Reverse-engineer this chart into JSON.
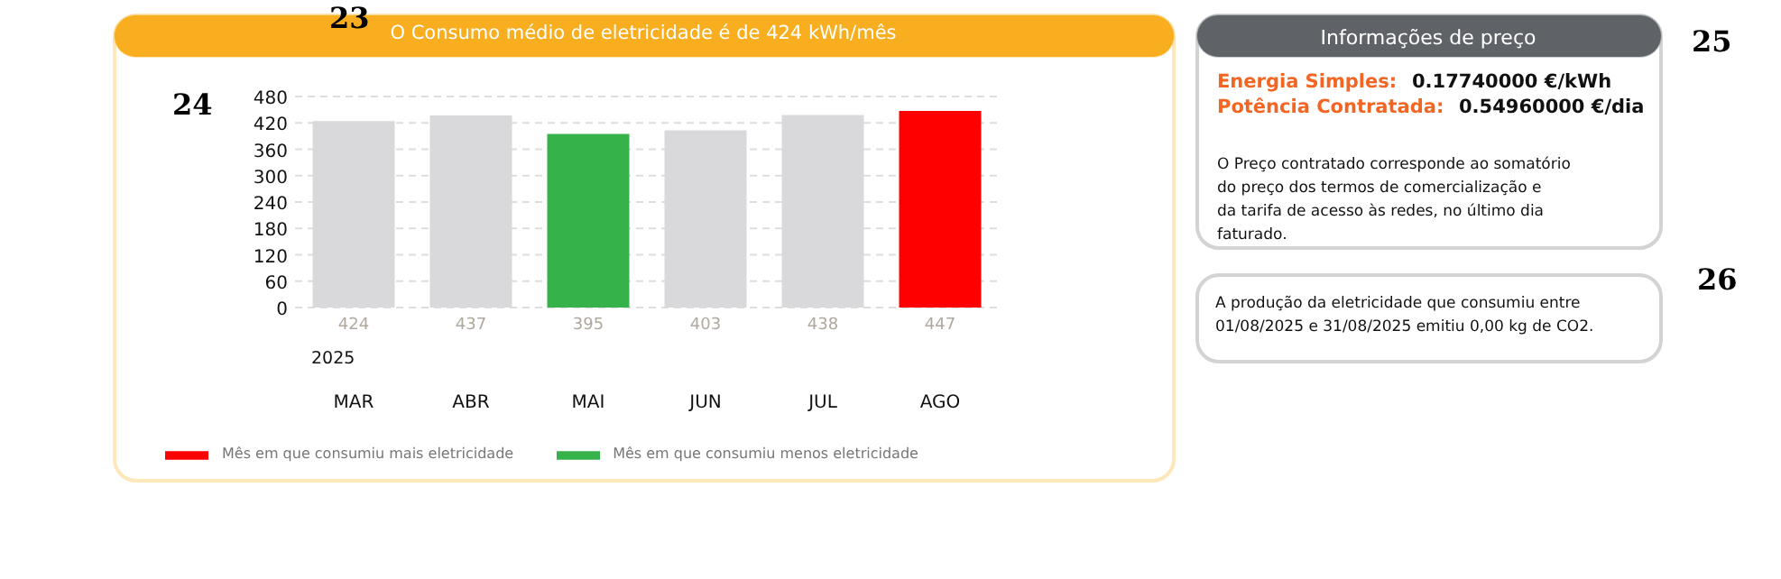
{
  "chart_data": {
    "type": "bar",
    "title": "O Consumo médio de eletricidade é de 424 kWh/mês",
    "categories": [
      "MAR",
      "ABR",
      "MAI",
      "JUN",
      "JUL",
      "AGO"
    ],
    "stacked": true,
    "series": [
      {
        "color": "#d9d9db",
        "values": [
          424,
          437,
          null,
          403,
          438,
          null
        ]
      },
      {
        "name": "Mês em que consumiu mais eletricidade",
        "color": "#ff0000",
        "values": [
          null,
          null,
          null,
          null,
          null,
          447
        ]
      },
      {
        "name": "Mês em que consumiu menos eletricidade",
        "color": "#35b34a",
        "values": [
          null,
          null,
          395,
          null,
          null,
          null
        ]
      }
    ],
    "ylim": [
      0,
      480
    ],
    "yticks": [
      0,
      60,
      120,
      180,
      240,
      300,
      360,
      420,
      480
    ],
    "grid": "y",
    "legend": "bottom left",
    "data_labels": true,
    "annotations": [
      "2025",
      "23",
      "24",
      "25",
      "26",
      "Informações de preço",
      "Energia Simples:",
      "0.17740000 €/kWh",
      "Potência Contratada:",
      "0.54960000 €/dia",
      "O Preço contratado corresponde ao somatório\ndo preço dos termos de comercialização e\nda tarifa de acesso às redes, no último dia\nfaturado.",
      "A produção da eletricidade que consumiu entre\n01/08/2025 e 31/08/2025 emitiu 0,00 kg de CO2."
    ]
  }
}
